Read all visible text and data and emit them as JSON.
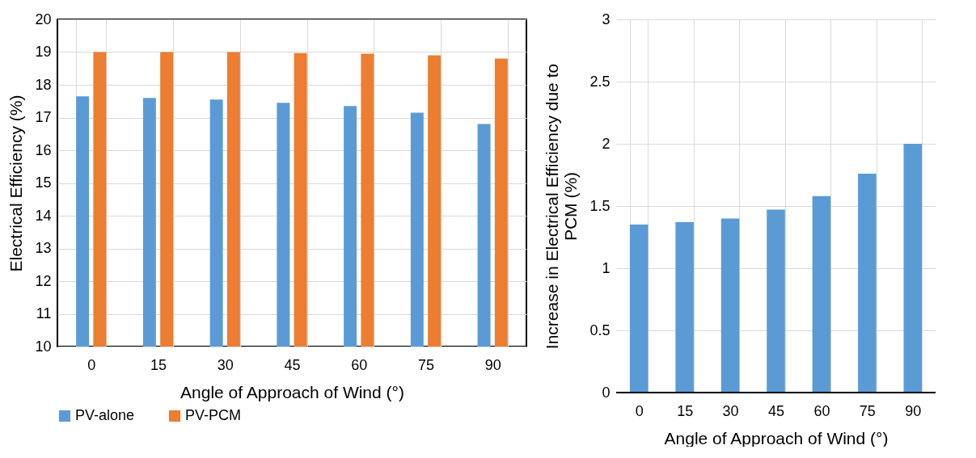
{
  "chart_data": [
    {
      "type": "bar",
      "xlabel": "Angle of Approach of Wind (°)",
      "ylabel": "Electrical Efficiency (%)",
      "categories": [
        "0",
        "15",
        "30",
        "45",
        "60",
        "75",
        "90"
      ],
      "series": [
        {
          "name": "PV-alone",
          "color": "#5b9bd5",
          "values": [
            17.65,
            17.6,
            17.55,
            17.45,
            17.35,
            17.15,
            16.8
          ]
        },
        {
          "name": "PV-PCM",
          "color": "#ed7d31",
          "values": [
            19.0,
            19.0,
            19.0,
            18.97,
            18.95,
            18.9,
            18.8
          ]
        }
      ],
      "ylim": [
        10,
        20
      ],
      "yticks": [
        10,
        11,
        12,
        13,
        14,
        15,
        16,
        17,
        18,
        19,
        20
      ],
      "grid": true,
      "legend": "bottom"
    },
    {
      "type": "bar",
      "xlabel": "Angle of Approach of Wind (°)",
      "ylabel": "Increase in Electrical Efficiency due to PCM (%)",
      "categories": [
        "0",
        "15",
        "30",
        "45",
        "60",
        "75",
        "90"
      ],
      "values": [
        1.35,
        1.37,
        1.4,
        1.47,
        1.58,
        1.76,
        2.0
      ],
      "color": "#5b9bd5",
      "ylim": [
        0,
        3
      ],
      "yticks": [
        {
          "value": 0,
          "label": "0"
        },
        0.5,
        {
          "value": 1,
          "label": "1"
        },
        1.5,
        {
          "value": 2,
          "label": "2"
        },
        2.5,
        {
          "value": 3,
          "label": "3"
        }
      ],
      "grid": true
    }
  ]
}
